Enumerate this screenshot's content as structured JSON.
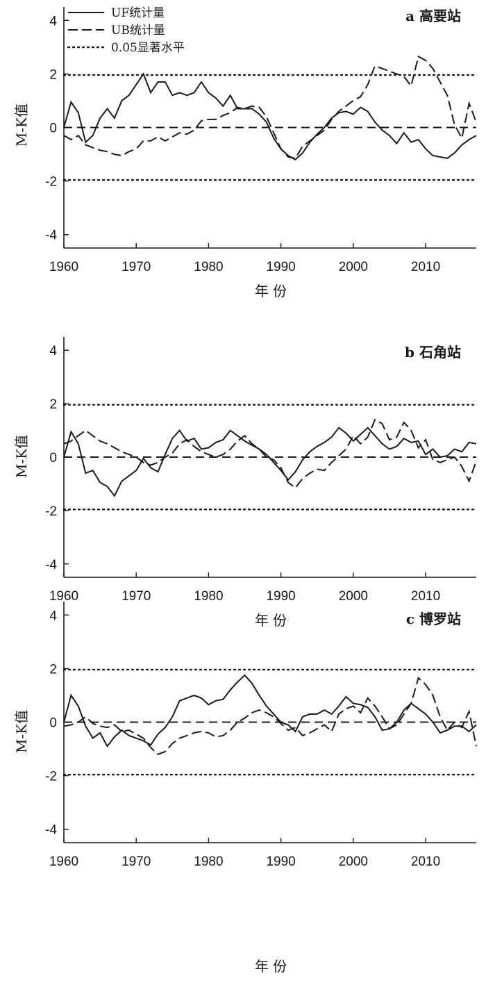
{
  "chart_data": [
    {
      "type": "line",
      "title": "a 高要站",
      "xlabel": "年 份",
      "ylabel": "M-K值",
      "xlim": [
        1960,
        2017
      ],
      "ylim": [
        -4.5,
        4.5
      ],
      "xticks": [
        1960,
        1970,
        1980,
        1990,
        2000,
        2010
      ],
      "yticks": [
        -4,
        -2,
        0,
        2,
        4
      ],
      "reference_lines": [
        {
          "name": "0.05显著水平",
          "values": [
            1.96,
            -1.96
          ],
          "style": "dotted"
        },
        {
          "name": "",
          "values": [
            0
          ],
          "style": "dashed"
        }
      ],
      "legend": {
        "placement": "top-left",
        "entries": [
          {
            "label": "UF统计量",
            "style": "solid"
          },
          {
            "label": "UB统计量",
            "style": "dashed"
          },
          {
            "label": "0.05显著水平",
            "style": "dotted"
          }
        ]
      },
      "series": [
        {
          "name": "UF统计量",
          "style": "solid",
          "x": [
            1960,
            1961,
            1962,
            1963,
            1964,
            1965,
            1966,
            1967,
            1968,
            1969,
            1970,
            1971,
            1972,
            1973,
            1974,
            1975,
            1976,
            1977,
            1978,
            1979,
            1980,
            1981,
            1982,
            1983,
            1984,
            1985,
            1986,
            1987,
            1988,
            1989,
            1990,
            1991,
            1992,
            1993,
            1994,
            1995,
            1996,
            1997,
            1998,
            1999,
            2000,
            2001,
            2002,
            2003,
            2004,
            2005,
            2006,
            2007,
            2008,
            2009,
            2010,
            2011,
            2012,
            2013,
            2014,
            2015,
            2016,
            2017
          ],
          "y": [
            0.0,
            0.95,
            0.55,
            -0.55,
            -0.3,
            0.35,
            0.7,
            0.35,
            1.0,
            1.2,
            1.6,
            2.0,
            1.3,
            1.7,
            1.7,
            1.2,
            1.3,
            1.2,
            1.3,
            1.7,
            1.3,
            1.1,
            0.8,
            1.2,
            0.7,
            0.7,
            0.7,
            0.5,
            0.2,
            -0.4,
            -0.8,
            -1.05,
            -1.2,
            -0.95,
            -0.55,
            -0.25,
            0.0,
            0.35,
            0.55,
            0.6,
            0.5,
            0.75,
            0.6,
            0.2,
            -0.1,
            -0.3,
            -0.6,
            -0.2,
            -0.55,
            -0.45,
            -0.8,
            -1.05,
            -1.1,
            -1.15,
            -0.95,
            -0.65,
            -0.45,
            -0.3
          ]
        },
        {
          "name": "UB统计量",
          "style": "dashed",
          "x": [
            1960,
            1961,
            1962,
            1963,
            1964,
            1965,
            1966,
            1967,
            1968,
            1969,
            1970,
            1971,
            1972,
            1973,
            1974,
            1975,
            1976,
            1977,
            1978,
            1979,
            1980,
            1981,
            1982,
            1983,
            1984,
            1985,
            1986,
            1987,
            1988,
            1989,
            1990,
            1991,
            1992,
            1993,
            1994,
            1995,
            1996,
            1997,
            1998,
            1999,
            2000,
            2001,
            2002,
            2003,
            2004,
            2005,
            2006,
            2007,
            2008,
            2009,
            2010,
            2011,
            2012,
            2013,
            2014,
            2015,
            2016,
            2017
          ],
          "y": [
            -0.3,
            -0.45,
            -0.3,
            -0.65,
            -0.75,
            -0.85,
            -0.9,
            -1.0,
            -1.05,
            -0.9,
            -0.8,
            -0.5,
            -0.5,
            -0.35,
            -0.5,
            -0.35,
            -0.2,
            -0.25,
            -0.1,
            0.25,
            0.3,
            0.3,
            0.45,
            0.55,
            0.75,
            0.7,
            0.8,
            0.75,
            0.4,
            -0.2,
            -0.8,
            -1.1,
            -1.15,
            -0.7,
            -0.5,
            -0.3,
            -0.1,
            0.3,
            0.6,
            0.8,
            1.0,
            1.15,
            1.6,
            2.3,
            2.2,
            2.1,
            2.0,
            1.9,
            1.55,
            2.65,
            2.5,
            2.2,
            1.7,
            1.2,
            0.1,
            -0.4,
            0.9,
            0.2
          ]
        }
      ]
    },
    {
      "type": "line",
      "title": "b 石角站",
      "xlabel": "年 份",
      "ylabel": "M-K值",
      "xlim": [
        1960,
        2017
      ],
      "ylim": [
        -4.5,
        4.5
      ],
      "xticks": [
        1960,
        1970,
        1980,
        1990,
        2000,
        2010
      ],
      "yticks": [
        -4,
        -2,
        0,
        2,
        4
      ],
      "reference_lines": [
        {
          "name": "0.05显著水平",
          "values": [
            1.96,
            -1.96
          ],
          "style": "dotted"
        },
        {
          "name": "",
          "values": [
            0
          ],
          "style": "dashed"
        }
      ],
      "series": [
        {
          "name": "UF统计量",
          "style": "solid",
          "x": [
            1960,
            1961,
            1962,
            1963,
            1964,
            1965,
            1966,
            1967,
            1968,
            1969,
            1970,
            1971,
            1972,
            1973,
            1974,
            1975,
            1976,
            1977,
            1978,
            1979,
            1980,
            1981,
            1982,
            1983,
            1984,
            1985,
            1986,
            1987,
            1988,
            1989,
            1990,
            1991,
            1992,
            1993,
            1994,
            1995,
            1996,
            1997,
            1998,
            1999,
            2000,
            2001,
            2002,
            2003,
            2004,
            2005,
            2006,
            2007,
            2008,
            2009,
            2010,
            2011,
            2012,
            2013,
            2014,
            2015,
            2016,
            2017
          ],
          "y": [
            0.0,
            0.95,
            0.5,
            -0.6,
            -0.5,
            -0.95,
            -1.1,
            -1.45,
            -0.9,
            -0.7,
            -0.5,
            -0.05,
            -0.4,
            -0.55,
            0.1,
            0.7,
            1.0,
            0.6,
            0.7,
            0.3,
            0.35,
            0.55,
            0.65,
            1.0,
            0.8,
            0.6,
            0.45,
            0.3,
            0.1,
            -0.2,
            -0.5,
            -0.85,
            -0.55,
            -0.1,
            0.2,
            0.4,
            0.55,
            0.75,
            1.1,
            0.9,
            0.6,
            0.85,
            1.1,
            0.8,
            0.5,
            0.3,
            0.4,
            0.7,
            0.55,
            0.6,
            0.1,
            0.3,
            0.0,
            0.05,
            0.3,
            0.2,
            0.55,
            0.5
          ]
        },
        {
          "name": "UB统计量",
          "style": "dashed",
          "x": [
            1960,
            1961,
            1962,
            1963,
            1964,
            1965,
            1966,
            1967,
            1968,
            1969,
            1970,
            1971,
            1972,
            1973,
            1974,
            1975,
            1976,
            1977,
            1978,
            1979,
            1980,
            1981,
            1982,
            1983,
            1984,
            1985,
            1986,
            1987,
            1988,
            1989,
            1990,
            1991,
            1992,
            1993,
            1994,
            1995,
            1996,
            1997,
            1998,
            1999,
            2000,
            2001,
            2002,
            2003,
            2004,
            2005,
            2006,
            2007,
            2008,
            2009,
            2010,
            2011,
            2012,
            2013,
            2014,
            2015,
            2016,
            2017
          ],
          "y": [
            0.5,
            0.6,
            0.8,
            1.0,
            0.8,
            0.6,
            0.5,
            0.35,
            0.2,
            0.1,
            0.0,
            -0.2,
            -0.3,
            -0.2,
            0.0,
            0.15,
            0.5,
            0.65,
            0.4,
            0.2,
            0.1,
            0.0,
            0.1,
            0.3,
            0.6,
            0.8,
            0.5,
            0.3,
            0.0,
            -0.1,
            -0.4,
            -0.95,
            -1.15,
            -0.8,
            -0.6,
            -0.45,
            -0.5,
            -0.2,
            0.05,
            0.3,
            0.8,
            0.5,
            0.75,
            1.4,
            1.25,
            0.65,
            0.75,
            1.3,
            1.0,
            0.35,
            0.65,
            -0.1,
            -0.2,
            -0.1,
            0.0,
            -0.35,
            -0.9,
            -0.15
          ]
        }
      ]
    },
    {
      "type": "line",
      "title": "c 博罗站",
      "xlabel": "年 份",
      "ylabel": "M-K值",
      "xlim": [
        1960,
        2017
      ],
      "ylim": [
        -4.5,
        4.5
      ],
      "xticks": [
        1960,
        1970,
        1980,
        1990,
        2000,
        2010
      ],
      "yticks": [
        -4,
        -2,
        0,
        2,
        4
      ],
      "reference_lines": [
        {
          "name": "0.05显著水平",
          "values": [
            1.96,
            -1.96
          ],
          "style": "dotted"
        },
        {
          "name": "",
          "values": [
            0
          ],
          "style": "dashed"
        }
      ],
      "series": [
        {
          "name": "UF统计量",
          "style": "solid",
          "x": [
            1960,
            1961,
            1962,
            1963,
            1964,
            1965,
            1966,
            1967,
            1968,
            1969,
            1970,
            1971,
            1972,
            1973,
            1974,
            1975,
            1976,
            1977,
            1978,
            1979,
            1980,
            1981,
            1982,
            1983,
            1984,
            1985,
            1986,
            1987,
            1988,
            1989,
            1990,
            1991,
            1992,
            1993,
            1994,
            1995,
            1996,
            1997,
            1998,
            1999,
            2000,
            2001,
            2002,
            2003,
            2004,
            2005,
            2006,
            2007,
            2008,
            2009,
            2010,
            2011,
            2012,
            2013,
            2014,
            2015,
            2016,
            2017
          ],
          "y": [
            0.0,
            1.0,
            0.6,
            -0.15,
            -0.6,
            -0.4,
            -0.9,
            -0.55,
            -0.3,
            -0.5,
            -0.6,
            -0.7,
            -0.85,
            -0.45,
            -0.2,
            0.2,
            0.8,
            0.9,
            1.0,
            0.9,
            0.65,
            0.8,
            0.85,
            1.2,
            1.5,
            1.75,
            1.45,
            1.0,
            0.6,
            0.3,
            0.0,
            -0.1,
            -0.35,
            0.2,
            0.3,
            0.3,
            0.45,
            0.3,
            0.6,
            0.95,
            0.7,
            0.65,
            0.55,
            0.2,
            -0.3,
            -0.25,
            0.0,
            0.45,
            0.7,
            0.5,
            0.3,
            0.0,
            -0.4,
            -0.3,
            -0.15,
            -0.15,
            -0.35,
            -0.1
          ]
        },
        {
          "name": "UB统计量",
          "style": "dashed",
          "x": [
            1960,
            1961,
            1962,
            1963,
            1964,
            1965,
            1966,
            1967,
            1968,
            1969,
            1970,
            1971,
            1972,
            1973,
            1974,
            1975,
            1976,
            1977,
            1978,
            1979,
            1980,
            1981,
            1982,
            1983,
            1984,
            1985,
            1986,
            1987,
            1988,
            1989,
            1990,
            1991,
            1992,
            1993,
            1994,
            1995,
            1996,
            1997,
            1998,
            1999,
            2000,
            2001,
            2002,
            2003,
            2004,
            2005,
            2006,
            2007,
            2008,
            2009,
            2010,
            2011,
            2012,
            2013,
            2014,
            2015,
            2016,
            2017
          ],
          "y": [
            -0.15,
            -0.1,
            0.0,
            0.2,
            -0.05,
            -0.15,
            -0.2,
            -0.1,
            -0.35,
            -0.3,
            -0.45,
            -0.6,
            -0.95,
            -1.2,
            -1.1,
            -0.8,
            -0.6,
            -0.5,
            -0.4,
            -0.35,
            -0.4,
            -0.55,
            -0.5,
            -0.3,
            0.0,
            0.15,
            0.35,
            0.45,
            0.35,
            0.2,
            -0.05,
            -0.3,
            -0.2,
            -0.5,
            -0.4,
            -0.25,
            -0.1,
            -0.35,
            0.3,
            0.5,
            0.6,
            0.35,
            0.9,
            0.6,
            0.2,
            -0.25,
            -0.1,
            0.3,
            0.7,
            1.65,
            1.4,
            1.0,
            0.2,
            -0.3,
            0.0,
            -0.2,
            0.4,
            -0.9
          ]
        }
      ]
    }
  ]
}
